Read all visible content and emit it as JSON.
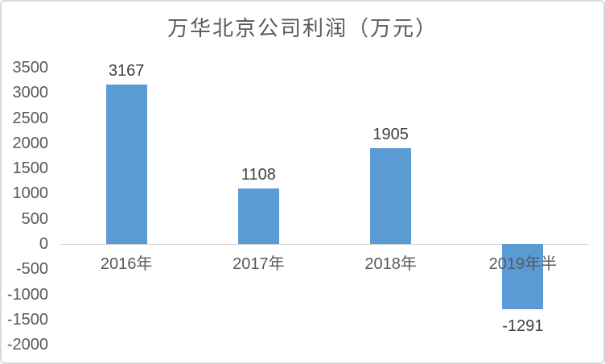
{
  "chart_data": {
    "type": "bar",
    "title": "万华北京公司利润（万元）",
    "categories": [
      "2016年",
      "2017年",
      "2018年",
      "2019年半"
    ],
    "values": [
      3167,
      1108,
      1905,
      -1291
    ],
    "data_labels": [
      "3167",
      "1108",
      "1905",
      "-1291"
    ],
    "y_ticks": [
      "3500",
      "3000",
      "2500",
      "2000",
      "1500",
      "1000",
      "500",
      "0",
      "-500",
      "-1000",
      "-1500",
      "-2000"
    ],
    "y_tick_values": [
      3500,
      3000,
      2500,
      2000,
      1500,
      1000,
      500,
      0,
      -500,
      -1000,
      -1500,
      -2000
    ],
    "ylim": [
      -2000,
      3500
    ],
    "y_tick_step": 500,
    "xlabel": "",
    "ylabel": "",
    "legend": "none",
    "gridlines": false,
    "colors": {
      "bar": "#5B9BD5",
      "axis_line": "#D6D6D6",
      "axis_text": "#595959",
      "data_label_text": "#404040",
      "title_text": "#595959",
      "chart_border": "#D9D9D9",
      "background": "#FFFFFF"
    }
  }
}
